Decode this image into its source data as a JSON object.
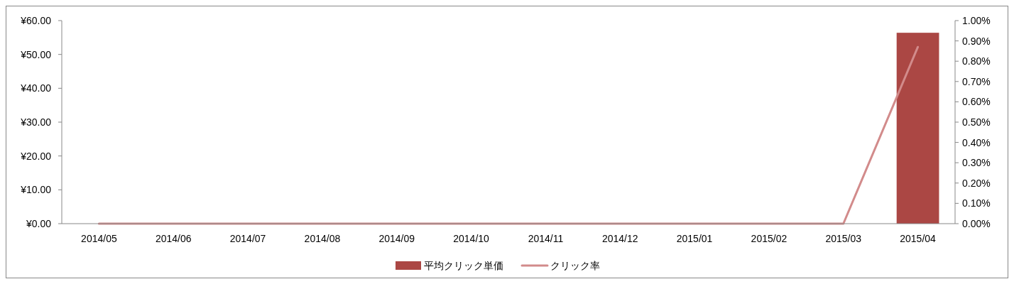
{
  "chart_data": {
    "type": "bar",
    "categories": [
      "2014/05",
      "2014/06",
      "2014/07",
      "2014/08",
      "2014/09",
      "2014/10",
      "2014/11",
      "2014/12",
      "2015/01",
      "2015/02",
      "2015/03",
      "2015/04"
    ],
    "series": [
      {
        "name": "平均クリック単価",
        "color": "#ab4744",
        "values": [
          0,
          0,
          0,
          0,
          0,
          0,
          0,
          0,
          0,
          0,
          0,
          56.4
        ]
      },
      {
        "name": "クリック率",
        "type": "line",
        "axis": "y2",
        "color": "#d28b8b",
        "values": [
          0,
          0,
          0,
          0,
          0,
          0,
          0,
          0,
          0,
          0,
          0,
          0.87
        ]
      }
    ],
    "ylim": [
      0,
      60
    ],
    "yticks": [
      {
        "value": 0,
        "label": "¥0.00"
      },
      {
        "value": 10,
        "label": "¥10.00"
      },
      {
        "value": 20,
        "label": "¥20.00"
      },
      {
        "value": 30,
        "label": "¥30.00"
      },
      {
        "value": 40,
        "label": "¥40.00"
      },
      {
        "value": 50,
        "label": "¥50.00"
      },
      {
        "value": 60,
        "label": "¥60.00"
      }
    ],
    "y2lim": [
      0,
      1
    ],
    "y2ticks": [
      {
        "value": 0,
        "label": "0.00%"
      },
      {
        "value": 0.1,
        "label": "0.10%"
      },
      {
        "value": 0.2,
        "label": "0.20%"
      },
      {
        "value": 0.3,
        "label": "0.30%"
      },
      {
        "value": 0.4,
        "label": "0.40%"
      },
      {
        "value": 0.5,
        "label": "0.50%"
      },
      {
        "value": 0.6,
        "label": "0.60%"
      },
      {
        "value": 0.7,
        "label": "0.70%"
      },
      {
        "value": 0.8,
        "label": "0.80%"
      },
      {
        "value": 0.9,
        "label": "0.90%"
      },
      {
        "value": 1,
        "label": "1.00%"
      }
    ],
    "legend": "bottom",
    "grid": false
  }
}
